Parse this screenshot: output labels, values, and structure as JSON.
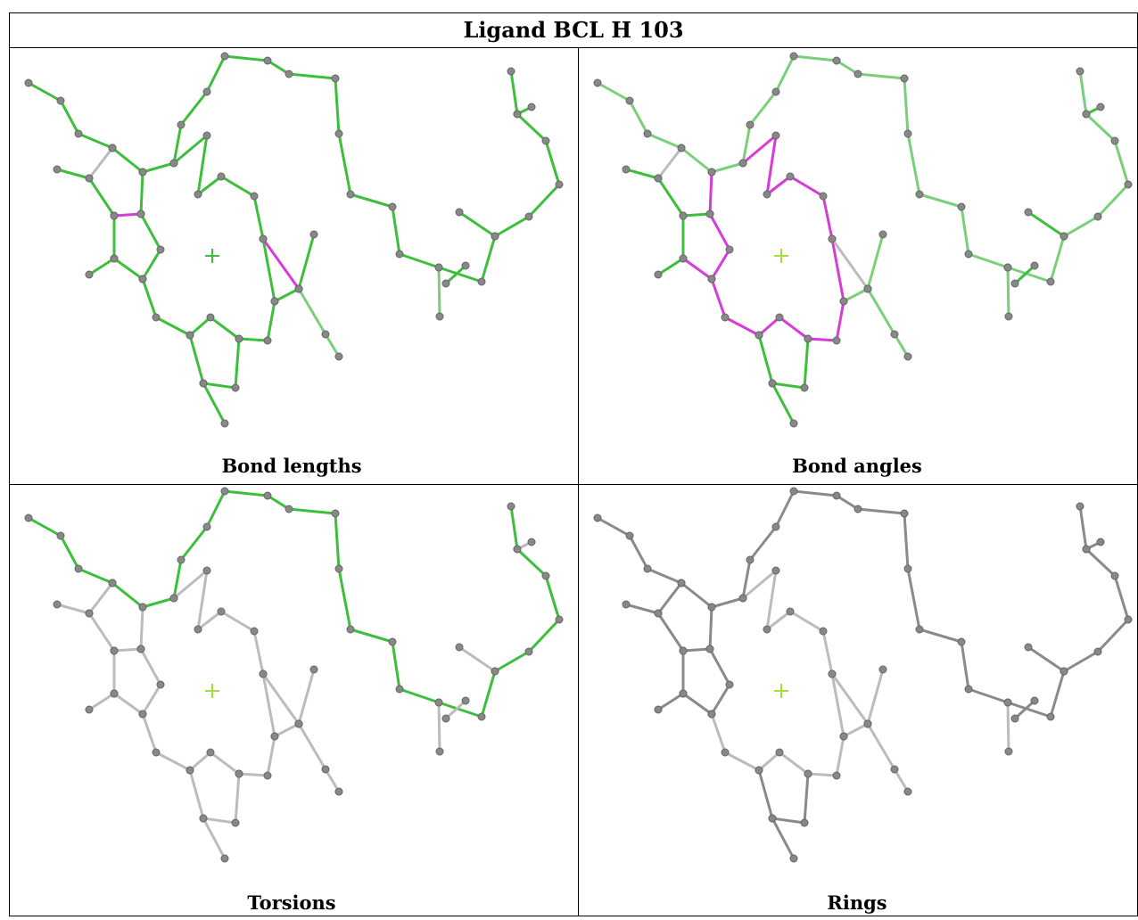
{
  "title": "Ligand BCL H 103",
  "panels": [
    {
      "caption": "Bond lengths"
    },
    {
      "caption": "Bond angles"
    },
    {
      "caption": "Torsions"
    },
    {
      "caption": "Rings"
    }
  ]
}
